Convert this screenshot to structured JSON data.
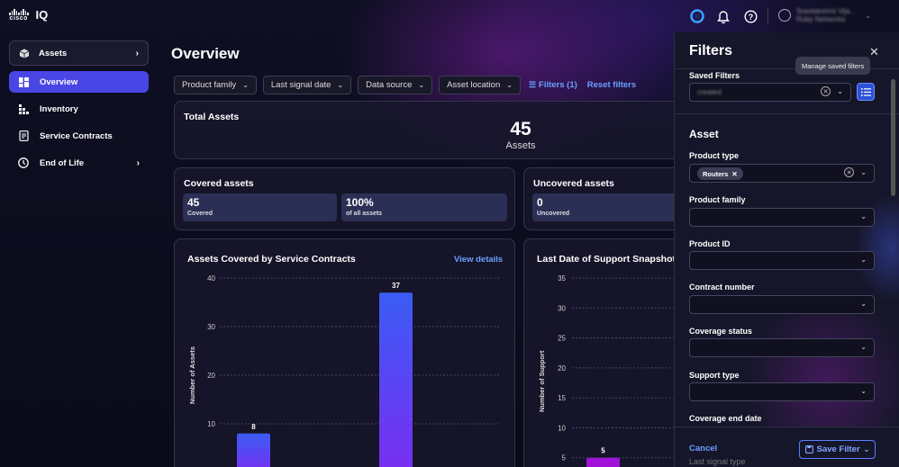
{
  "app": {
    "brand": "cisco",
    "product": "IQ"
  },
  "user": {
    "name": "Sreelakshmi Vija...",
    "org": "Ruby Networks"
  },
  "sidebar": {
    "header": "Assets",
    "items": [
      {
        "label": "Overview",
        "active": true
      },
      {
        "label": "Inventory"
      },
      {
        "label": "Service Contracts"
      },
      {
        "label": "End of Life"
      }
    ]
  },
  "page": {
    "title": "Overview"
  },
  "filters": {
    "chips": [
      "Product family",
      "Last signal date",
      "Data source",
      "Asset location"
    ],
    "filters_link": "Filters (1)",
    "reset": "Reset filters"
  },
  "total_assets": {
    "title": "Total Assets",
    "value": "45",
    "label": "Assets"
  },
  "covered": {
    "title": "Covered assets",
    "stat1_value": "45",
    "stat1_label": "Covered",
    "stat2_value": "100%",
    "stat2_label": "of all assets"
  },
  "uncovered": {
    "title": "Uncovered assets",
    "stat1_value": "0",
    "stat1_label": "Uncovered"
  },
  "chart1_card": {
    "view_details": "View details"
  },
  "chart_data": [
    {
      "type": "bar",
      "title": "Assets Covered by Service Contracts",
      "ylabel": "Number of Assets",
      "ylim": [
        0,
        40
      ],
      "yticks": [
        10,
        20,
        30,
        40
      ],
      "values": [
        8,
        37
      ],
      "colors": [
        "#3a5cf5",
        "#7a2ef0"
      ]
    },
    {
      "type": "bar",
      "title": "Last Date of Support Snapshot",
      "ylabel": "Number of Support",
      "ylim": [
        0,
        35
      ],
      "yticks": [
        5,
        10,
        15,
        20,
        25,
        30,
        35
      ],
      "values": [
        5
      ],
      "colors": [
        "#a012d8"
      ]
    }
  ],
  "panel": {
    "title": "Filters",
    "saved_filters_label": "Saved Filters",
    "saved_filters_value": "created",
    "tooltip": "Manage saved filters",
    "section": "Asset",
    "fields": {
      "product_type": "Product type",
      "product_type_tag": "Routers",
      "product_family": "Product family",
      "product_id": "Product ID",
      "contract_number": "Contract number",
      "coverage_status": "Coverage status",
      "support_type": "Support type",
      "coverage_end_date": "Coverage end date",
      "last_signal_type": "Last signal type"
    },
    "cancel": "Cancel",
    "save": "Save Filter"
  }
}
